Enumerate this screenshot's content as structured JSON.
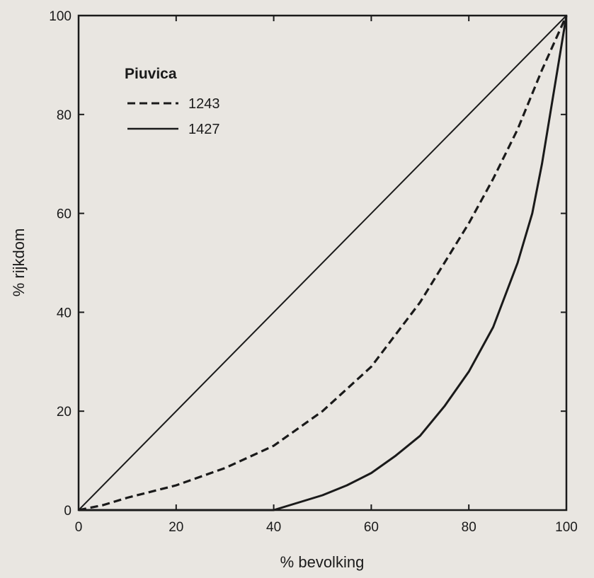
{
  "chart_data": {
    "type": "line",
    "xlabel": "% bevolking",
    "ylabel": "% rijkdom",
    "xlim": [
      0,
      100
    ],
    "ylim": [
      0,
      100
    ],
    "x_ticks": [
      0,
      20,
      40,
      60,
      80,
      100
    ],
    "y_ticks": [
      0,
      20,
      40,
      60,
      80,
      100
    ],
    "grid": false,
    "legend": {
      "title": "Piuvica",
      "placement": "top-left"
    },
    "equality_line": {
      "x": [
        0,
        100
      ],
      "y": [
        0,
        100
      ]
    },
    "series": [
      {
        "name": "1243",
        "style": "dashed",
        "x": [
          0,
          5,
          10,
          20,
          30,
          40,
          50,
          60,
          70,
          80,
          85,
          90,
          95,
          100
        ],
        "y": [
          0,
          1,
          2.5,
          5,
          8.5,
          13,
          20,
          29,
          42,
          58,
          67,
          77,
          89,
          100
        ]
      },
      {
        "name": "1427",
        "style": "solid",
        "x": [
          0,
          40,
          45,
          50,
          55,
          60,
          65,
          70,
          75,
          80,
          85,
          90,
          93,
          95,
          97,
          100
        ],
        "y": [
          0,
          0,
          1.5,
          3,
          5,
          7.5,
          11,
          15,
          21,
          28,
          37,
          50,
          60,
          70,
          82,
          100
        ]
      }
    ]
  }
}
